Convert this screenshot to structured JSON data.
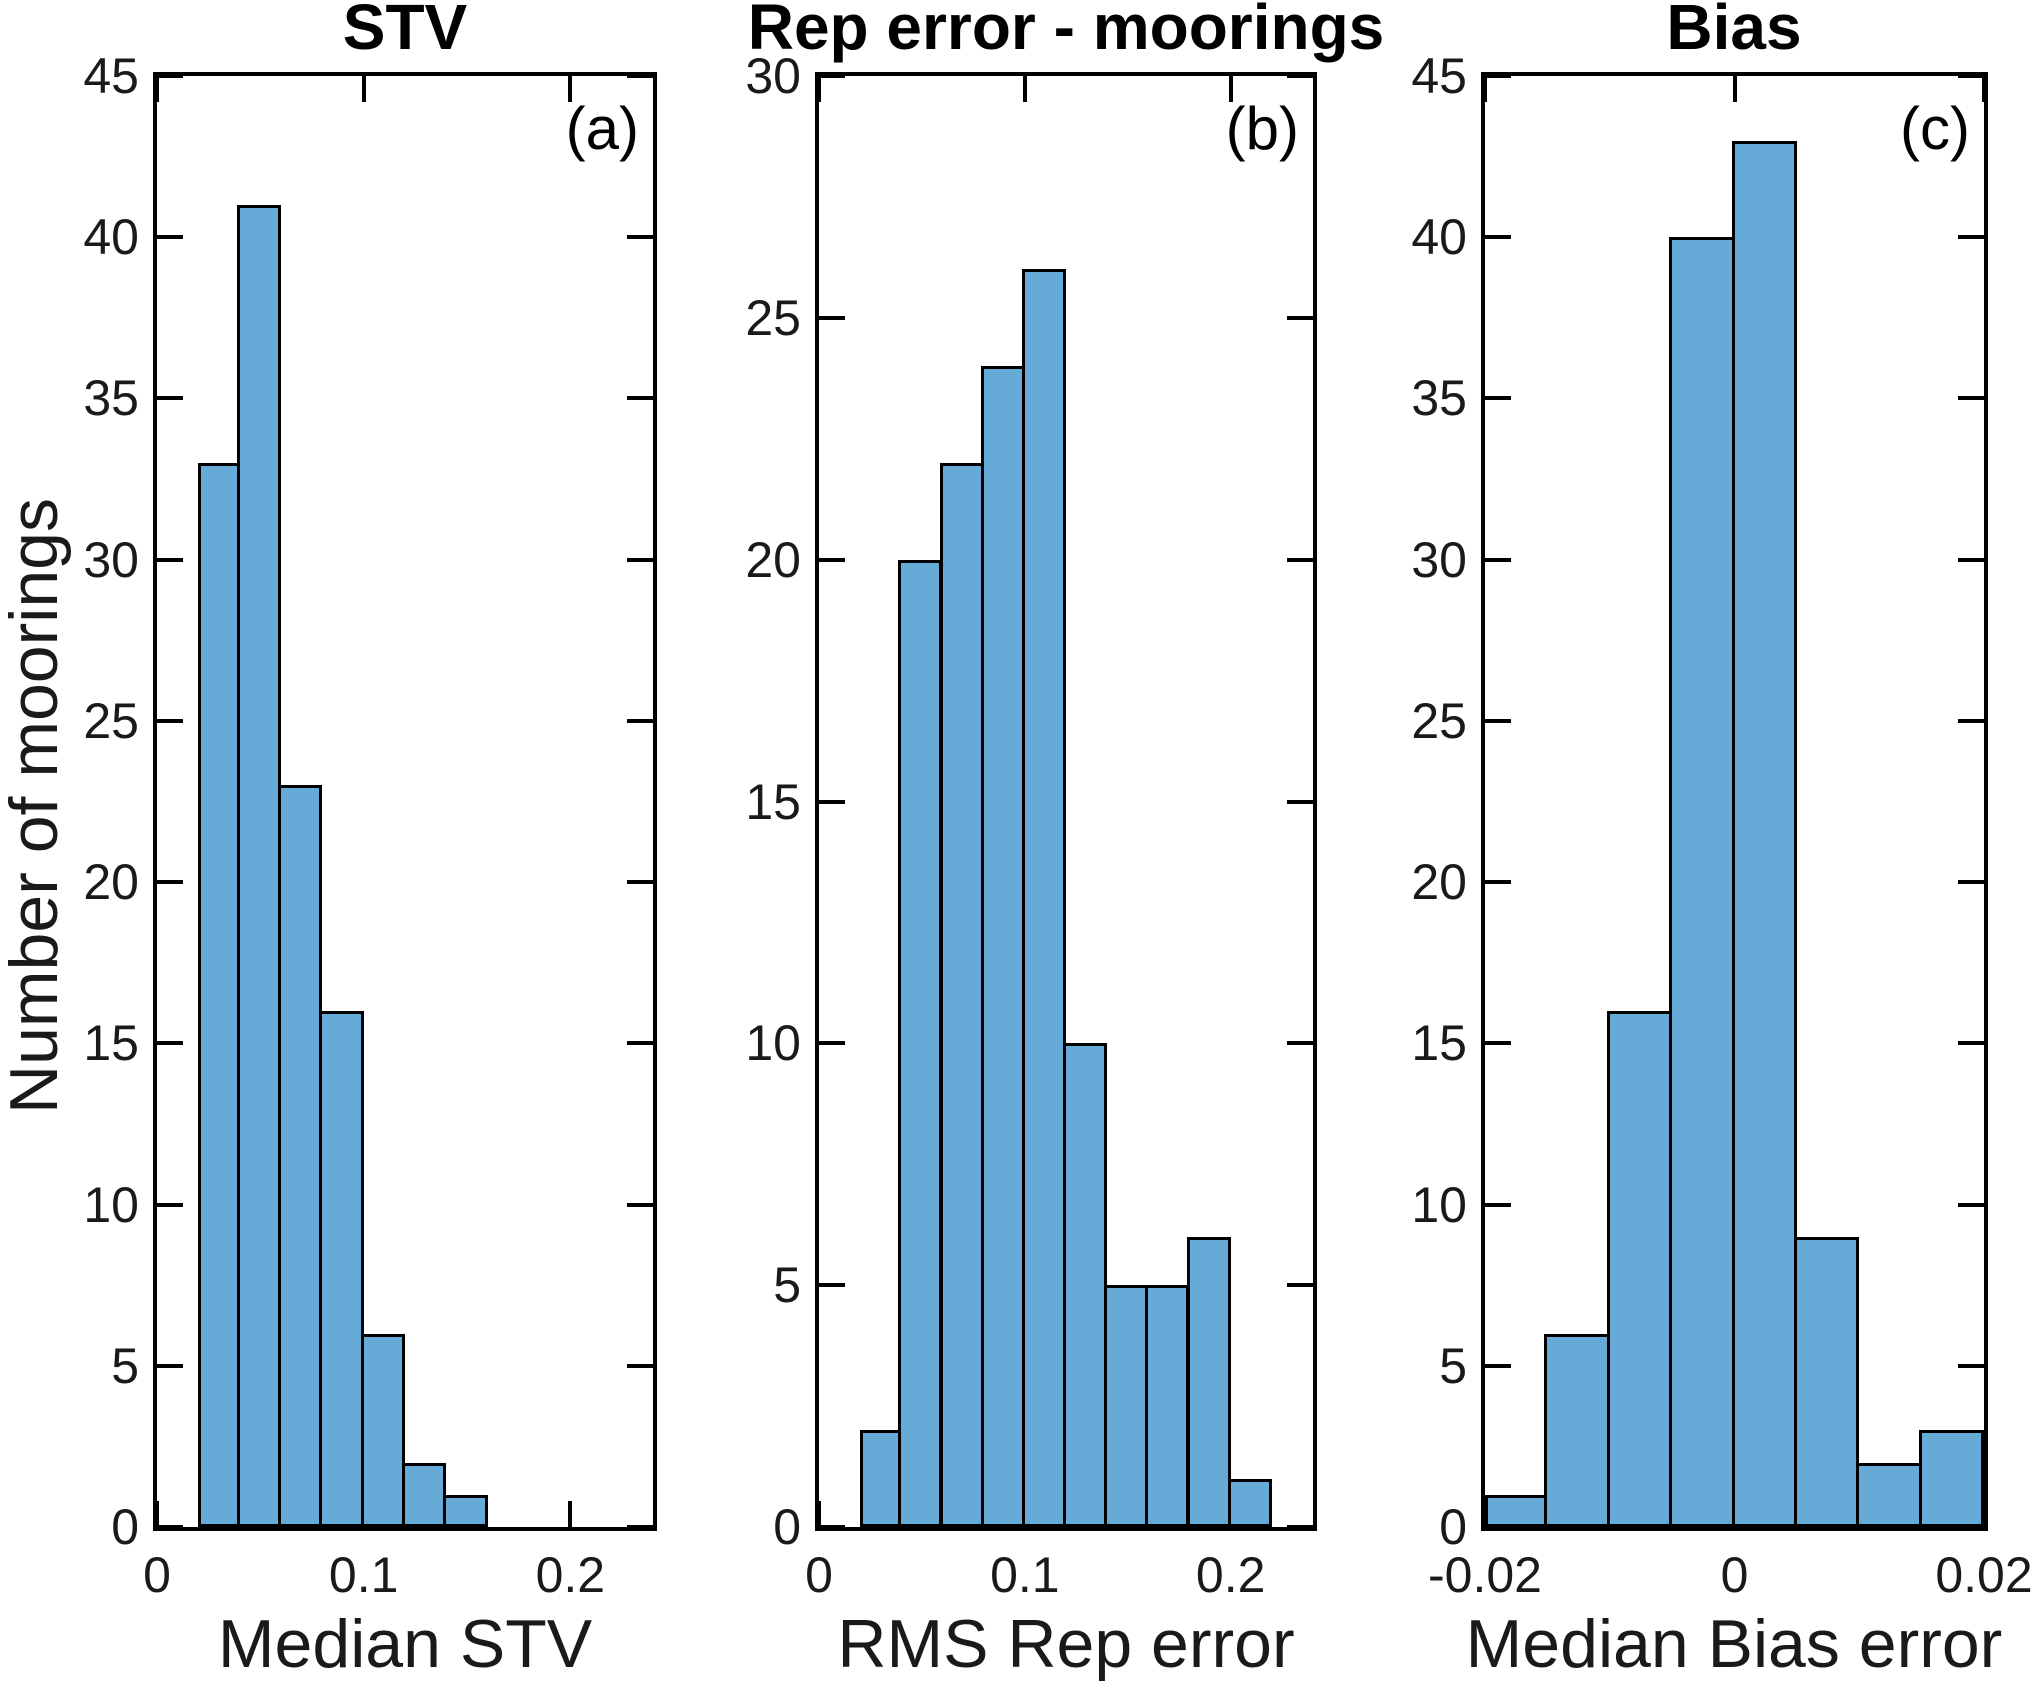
{
  "figure": {
    "ylabel": "Number of moorings",
    "background": "#ffffff",
    "bar_fill": "#66AAD7",
    "bar_edge": "#000000",
    "axis_color": "#000000",
    "text_color": "#1a1a1a"
  },
  "chart_data": [
    {
      "type": "bar",
      "panel": "a",
      "title": "STV",
      "corner_label": "(a)",
      "xlabel": "Median STV",
      "ylabel": "Number of moorings",
      "xlim": [
        0,
        0.24
      ],
      "ylim": [
        0,
        45
      ],
      "xticks": [
        0,
        0.1,
        0.2
      ],
      "xtick_labels": [
        "0",
        "0.1",
        "0.2"
      ],
      "ytick_step": 5,
      "grid": false,
      "bins": {
        "start": 0.02,
        "width": 0.02
      },
      "counts": [
        33,
        41,
        23,
        16,
        6,
        2,
        1
      ],
      "bar_fill": "#66AAD7",
      "bar_edge": "#000000"
    },
    {
      "type": "bar",
      "panel": "b",
      "title": "Rep error - moorings",
      "corner_label": "(b)",
      "xlabel": "RMS Rep error",
      "ylabel": "Number of moorings",
      "xlim": [
        0,
        0.24
      ],
      "ylim": [
        0,
        30
      ],
      "xticks": [
        0,
        0.1,
        0.2
      ],
      "xtick_labels": [
        "0",
        "0.1",
        "0.2"
      ],
      "ytick_step": 5,
      "grid": false,
      "bins": {
        "start": 0.02,
        "width": 0.02
      },
      "counts": [
        2,
        20,
        22,
        24,
        26,
        10,
        5,
        5,
        6,
        1
      ],
      "bar_fill": "#66AAD7",
      "bar_edge": "#000000"
    },
    {
      "type": "bar",
      "panel": "c",
      "title": "Bias",
      "corner_label": "(c)",
      "xlabel": "Median Bias error",
      "ylabel": "Number of moorings",
      "xlim": [
        -0.02,
        0.02
      ],
      "ylim": [
        0,
        45
      ],
      "xticks": [
        -0.02,
        0,
        0.02
      ],
      "xtick_labels": [
        "-0.02",
        "0",
        "0.02"
      ],
      "ytick_step": 5,
      "grid": false,
      "bins": {
        "start": -0.02,
        "width": 0.005
      },
      "counts": [
        1,
        6,
        16,
        40,
        43,
        9,
        2,
        3
      ],
      "bar_fill": "#66AAD7",
      "bar_edge": "#000000"
    }
  ]
}
